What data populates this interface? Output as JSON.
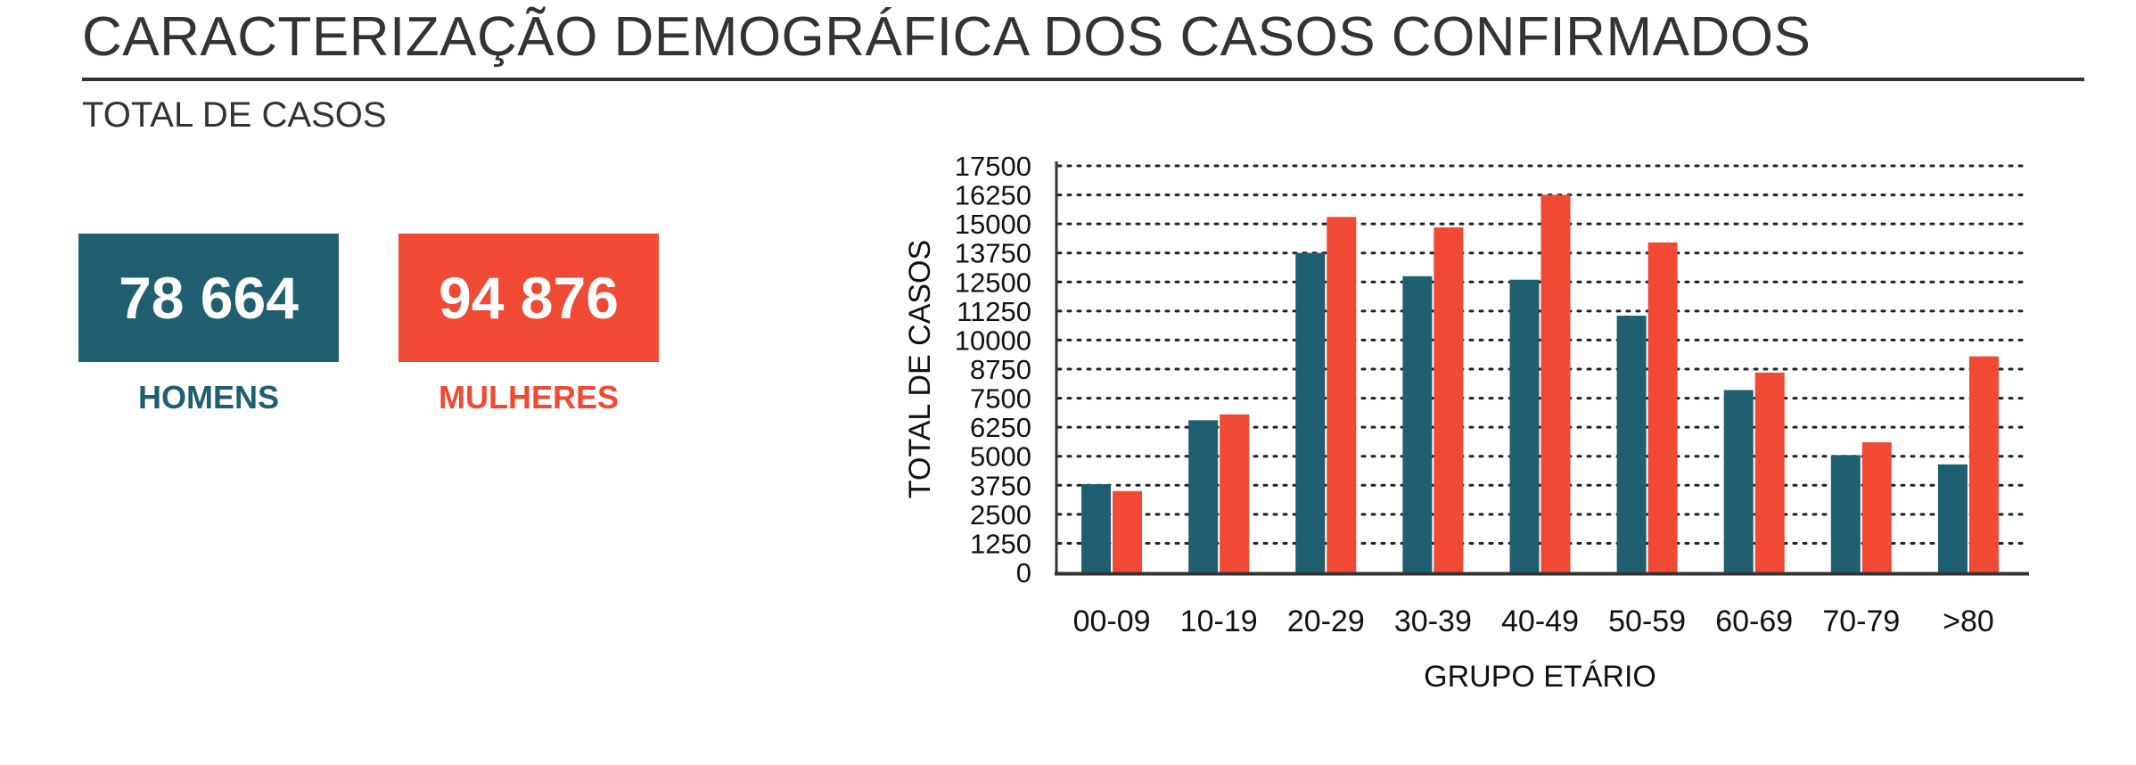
{
  "header": {
    "title": "CARACTERIZAÇÃO DEMOGRÁFICA DOS CASOS CONFIRMADOS"
  },
  "section": {
    "label": "TOTAL DE CASOS"
  },
  "stats": {
    "men": {
      "value": "78 664",
      "label": "HOMENS",
      "color": "#1f5f6f"
    },
    "women": {
      "value": "94 876",
      "label": "MULHERES",
      "color": "#f04a35"
    }
  },
  "chart_data": {
    "type": "bar",
    "categories": [
      "00-09",
      "10-19",
      "20-29",
      "30-39",
      "40-49",
      "50-59",
      "60-69",
      "70-79",
      ">80"
    ],
    "series": [
      {
        "color": "#1f5f6f",
        "values": [
          3800,
          6550,
          13750,
          12750,
          12600,
          11050,
          7850,
          5050,
          4650
        ]
      },
      {
        "color": "#f04a35",
        "values": [
          3500,
          6800,
          15300,
          14850,
          16250,
          14200,
          8600,
          5600,
          9300
        ]
      }
    ],
    "xlabel": "GRUPO ETÁRIO",
    "ylabel": "TOTAL DE CASOS",
    "ylim": [
      0,
      17500
    ],
    "yticks": [
      "0",
      "1250",
      "2500",
      "3750",
      "5000",
      "6250",
      "7500",
      "8750",
      "10000",
      "11250",
      "12500",
      "13750",
      "15000",
      "16250",
      "17500"
    ],
    "grid": "horizontal-dotted",
    "legend": "none"
  }
}
